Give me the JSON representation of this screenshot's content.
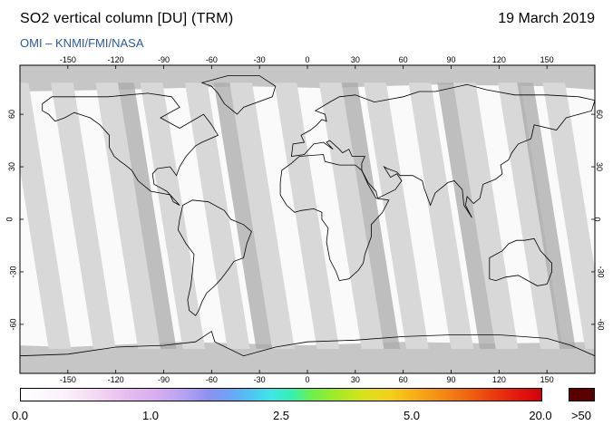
{
  "header": {
    "title": "SO2 vertical column [DU] (TRM)",
    "date": "19 March 2019",
    "credit": "OMI  –  KNMI/FMI/NASA"
  },
  "map": {
    "projection": "equirectangular",
    "lon_ticks": [
      -150,
      -120,
      -90,
      -60,
      -30,
      0,
      30,
      60,
      90,
      120,
      150
    ],
    "lat_ticks": [
      60,
      30,
      0,
      -30,
      -60
    ],
    "lon_tick_labels": [
      "-150",
      "-120",
      "-90",
      "-60",
      "-30",
      "0",
      "30",
      "60",
      "90",
      "120",
      "150"
    ],
    "lat_tick_labels": [
      "60",
      "30",
      "0",
      "-30",
      "-60"
    ],
    "colors": {
      "no_data": "#c6c6c6",
      "swath_light": "#d8d8d8",
      "swath_dark": "#a9a9a9",
      "land_outline": "#000000",
      "background_value": "#fafafa"
    }
  },
  "colorbar": {
    "labels": [
      "0.0",
      "1.0",
      "2.5",
      "5.0",
      "20.0",
      ">50"
    ],
    "over_color": "#5a0000"
  }
}
